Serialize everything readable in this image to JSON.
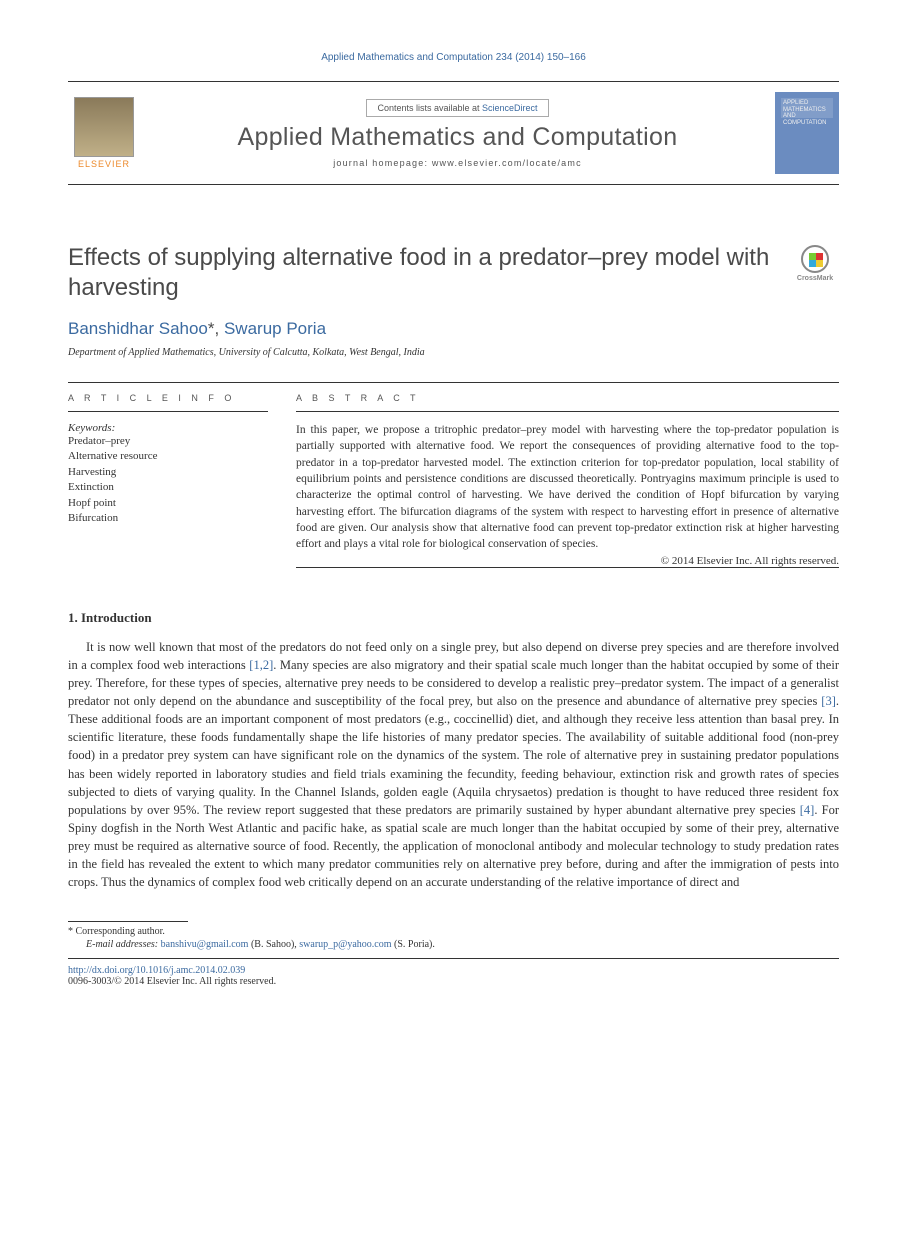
{
  "header": {
    "citation": "Applied Mathematics and Computation 234 (2014) 150–166",
    "contents_prefix": "Contents lists available at ",
    "sciencedirect": "ScienceDirect",
    "journal_name": "Applied Mathematics and Computation",
    "homepage_label": "journal homepage: www.elsevier.com/locate/amc",
    "elsevier_label": "ELSEVIER",
    "cover_text": "APPLIED MATHEMATICS AND COMPUTATION"
  },
  "crossmark": {
    "label": "CrossMark"
  },
  "article": {
    "title": "Effects of supplying alternative food in a predator–prey model with harvesting",
    "authors_prefix": "",
    "author1": "Banshidhar Sahoo",
    "author1_marker": "*",
    "author_sep": ", ",
    "author2": "Swarup Poria",
    "affiliation": "Department of Applied Mathematics, University of Calcutta, Kolkata, West Bengal, India"
  },
  "info": {
    "heading": "A R T I C L E   I N F O",
    "keywords_label": "Keywords:",
    "keywords": [
      "Predator–prey",
      "Alternative resource",
      "Harvesting",
      "Extinction",
      "Hopf point",
      "Bifurcation"
    ]
  },
  "abstract": {
    "heading": "A B S T R A C T",
    "text": "In this paper, we propose a tritrophic predator–prey model with harvesting where the top-predator population is partially supported with alternative food. We report the consequences of providing alternative food to the top-predator in a top-predator harvested model. The extinction criterion for top-predator population, local stability of equilibrium points and persistence conditions are discussed theoretically. Pontryagins maximum principle is used to characterize the optimal control of harvesting. We have derived the condition of Hopf bifurcation by varying harvesting effort. The bifurcation diagrams of the system with respect to harvesting effort in presence of alternative food are given. Our analysis show that alternative food can prevent top-predator extinction risk at higher harvesting effort and plays a vital role for biological conservation of species.",
    "copyright": "© 2014 Elsevier Inc. All rights reserved."
  },
  "sections": {
    "intro_title": "1. Introduction",
    "intro_body": "It is now well known that most of the predators do not feed only on a single prey, but also depend on diverse prey species and are therefore involved in a complex food web interactions [1,2]. Many species are also migratory and their spatial scale much longer than the habitat occupied by some of their prey. Therefore, for these types of species, alternative prey needs to be considered to develop a realistic prey–predator system. The impact of a generalist predator not only depend on the abundance and susceptibility of the focal prey, but also on the presence and abundance of alternative prey species [3]. These additional foods are an important component of most predators (e.g., coccinellid) diet, and although they receive less attention than basal prey. In scientific literature, these foods fundamentally shape the life histories of many predator species. The availability of suitable additional food (non-prey food) in a predator prey system can have significant role on the dynamics of the system. The role of alternative prey in sustaining predator populations has been widely reported in laboratory studies and field trials examining the fecundity, feeding behaviour, extinction risk and growth rates of species subjected to diets of varying quality. In the Channel Islands, golden eagle (Aquila chrysaetos) predation is thought to have reduced three resident fox populations by over 95%. The review report suggested that these predators are primarily sustained by hyper abundant alternative prey species [4]. For Spiny dogfish in the North West Atlantic and pacific hake, as spatial scale are much longer than the habitat occupied by some of their prey, alternative prey must be required as alternative source of food. Recently, the application of monoclonal antibody and molecular technology to study predation rates in the field has revealed the extent to which many predator communities rely on alternative prey before, during and after the immigration of pests into crops. Thus the dynamics of complex food web critically depend on an accurate understanding of the relative importance of direct and"
  },
  "refs": {
    "r12": "[1,2]",
    "r3": "[3]",
    "r4": "[4]"
  },
  "footer": {
    "corresponding_marker": "* ",
    "corresponding_text": "Corresponding author.",
    "email_label": "E-mail addresses: ",
    "email1": "banshivu@gmail.com",
    "email1_owner": " (B. Sahoo), ",
    "email2": "swarup_p@yahoo.com",
    "email2_owner": " (S. Poria).",
    "doi": "http://dx.doi.org/10.1016/j.amc.2014.02.039",
    "issn": "0096-3003/© 2014 Elsevier Inc. All rights reserved."
  },
  "colors": {
    "link": "#3b6aa0",
    "cover_bg": "#6b8cc0",
    "elsevier_orange": "#ec8a2c"
  }
}
